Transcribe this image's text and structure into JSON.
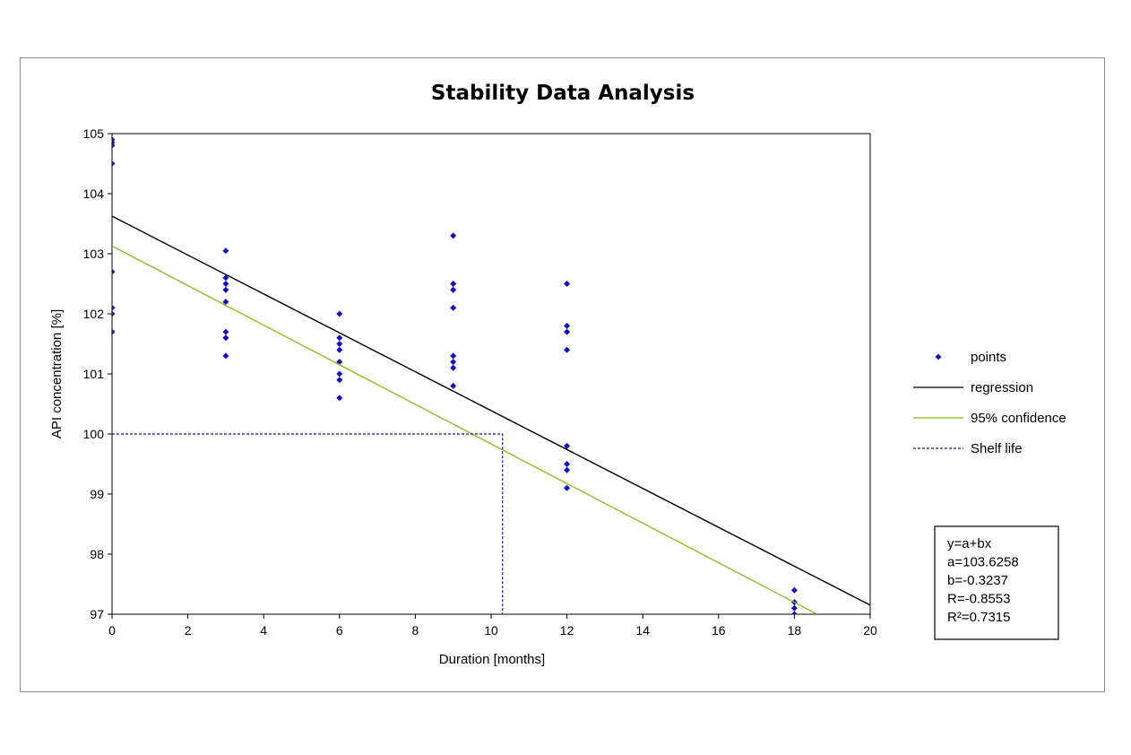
{
  "chart_data": {
    "type": "scatter",
    "title": "Stability Data Analysis",
    "xlabel": "Duration [months]",
    "ylabel": "API concentration [%]",
    "xlim": [
      0,
      20
    ],
    "ylim": [
      97,
      105
    ],
    "xticks": [
      "0",
      "2",
      "4",
      "6",
      "8",
      "10",
      "12",
      "14",
      "16",
      "18",
      "20"
    ],
    "yticks": [
      "97",
      "98",
      "99",
      "100",
      "101",
      "102",
      "103",
      "104",
      "105"
    ],
    "grid": false,
    "legend_position": "right",
    "series": [
      {
        "name": "points",
        "kind": "scatter",
        "color": "#1010c0",
        "points": [
          [
            0,
            104.9
          ],
          [
            0,
            104.85
          ],
          [
            0,
            104.8
          ],
          [
            0,
            104.5
          ],
          [
            0,
            102.7
          ],
          [
            0,
            102.1
          ],
          [
            0,
            102.0
          ],
          [
            0,
            101.7
          ],
          [
            3,
            103.05
          ],
          [
            3,
            102.6
          ],
          [
            3,
            102.5
          ],
          [
            3,
            102.4
          ],
          [
            3,
            102.2
          ],
          [
            3,
            101.7
          ],
          [
            3,
            101.6
          ],
          [
            3,
            101.3
          ],
          [
            6,
            102.0
          ],
          [
            6,
            101.6
          ],
          [
            6,
            101.5
          ],
          [
            6,
            101.4
          ],
          [
            6,
            101.2
          ],
          [
            6,
            101.0
          ],
          [
            6,
            100.9
          ],
          [
            6,
            100.6
          ],
          [
            9,
            103.3
          ],
          [
            9,
            102.5
          ],
          [
            9,
            102.4
          ],
          [
            9,
            102.1
          ],
          [
            9,
            101.3
          ],
          [
            9,
            101.2
          ],
          [
            9,
            101.1
          ],
          [
            9,
            100.8
          ],
          [
            12,
            102.5
          ],
          [
            12,
            101.8
          ],
          [
            12,
            101.7
          ],
          [
            12,
            101.4
          ],
          [
            12,
            99.8
          ],
          [
            12,
            99.5
          ],
          [
            12,
            99.4
          ],
          [
            12,
            99.1
          ],
          [
            18,
            97.4
          ],
          [
            18,
            97.2
          ],
          [
            18,
            97.1
          ],
          [
            18,
            97.0
          ]
        ]
      },
      {
        "name": "regression",
        "kind": "line",
        "color": "#000000",
        "points": [
          [
            0,
            103.6258
          ],
          [
            20,
            97.1518
          ]
        ]
      },
      {
        "name": "95% confidence",
        "kind": "line",
        "color": "#8cbf26",
        "points": [
          [
            0,
            103.13
          ],
          [
            18.6,
            97.0
          ]
        ]
      },
      {
        "name": "Shelf life",
        "kind": "dashed",
        "color": "#1a1a8c",
        "points": [
          [
            0,
            100
          ],
          [
            10.3,
            100
          ],
          [
            10.3,
            97
          ]
        ]
      }
    ],
    "equation_box": {
      "lines": [
        "y=a+bx",
        "a=103.6258",
        "b=-0.3237",
        "R=-0.8553",
        "R²=0.7315"
      ]
    }
  }
}
